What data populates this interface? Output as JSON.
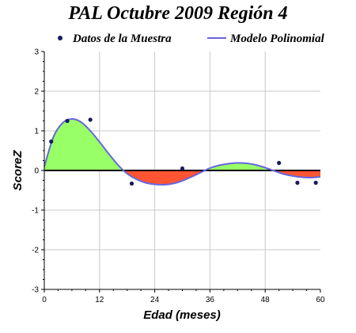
{
  "chart_data": {
    "type": "line",
    "title": "PAL Octubre 2009 Región 4",
    "xlabel": "Edad (meses)",
    "ylabel": "ScoreZ",
    "xlim": [
      0,
      60
    ],
    "ylim": [
      -3,
      3
    ],
    "x_ticks": [
      0,
      12,
      24,
      36,
      48,
      60
    ],
    "y_ticks": [
      -3,
      -2,
      -1,
      0,
      1,
      2,
      3
    ],
    "grid": true,
    "legend": "top",
    "legend_entries": [
      "Datos de la Muestra",
      "Modelo Polinomial"
    ],
    "colors": {
      "points": "#1a1a5e",
      "model_line": "#6666dd",
      "fill_positive": "#99ff66",
      "fill_negative": "#ff5533",
      "zero_line": "#000000",
      "grid": "#c8c8c8"
    },
    "series": [
      {
        "name": "Datos de la Muestra",
        "kind": "scatter",
        "x": [
          1.5,
          5,
          10,
          19,
          30,
          51,
          55,
          59
        ],
        "y": [
          0.73,
          1.25,
          1.28,
          -0.33,
          0.05,
          0.19,
          -0.31,
          -0.31
        ]
      },
      {
        "name": "Modelo Polinomial",
        "kind": "line",
        "x": [
          0,
          2,
          4,
          6,
          8,
          10,
          12,
          14,
          16,
          18,
          20,
          22,
          24,
          26,
          28,
          30,
          32,
          34,
          36,
          38,
          40,
          42,
          44,
          46,
          48,
          50,
          52,
          54,
          56,
          58,
          60
        ],
        "y": [
          0.1,
          0.85,
          1.2,
          1.3,
          1.22,
          1.0,
          0.72,
          0.42,
          0.14,
          -0.08,
          -0.22,
          -0.31,
          -0.35,
          -0.36,
          -0.33,
          -0.26,
          -0.16,
          -0.05,
          0.06,
          0.13,
          0.17,
          0.19,
          0.18,
          0.14,
          0.07,
          -0.01,
          -0.09,
          -0.14,
          -0.17,
          -0.18,
          -0.16
        ]
      }
    ]
  }
}
